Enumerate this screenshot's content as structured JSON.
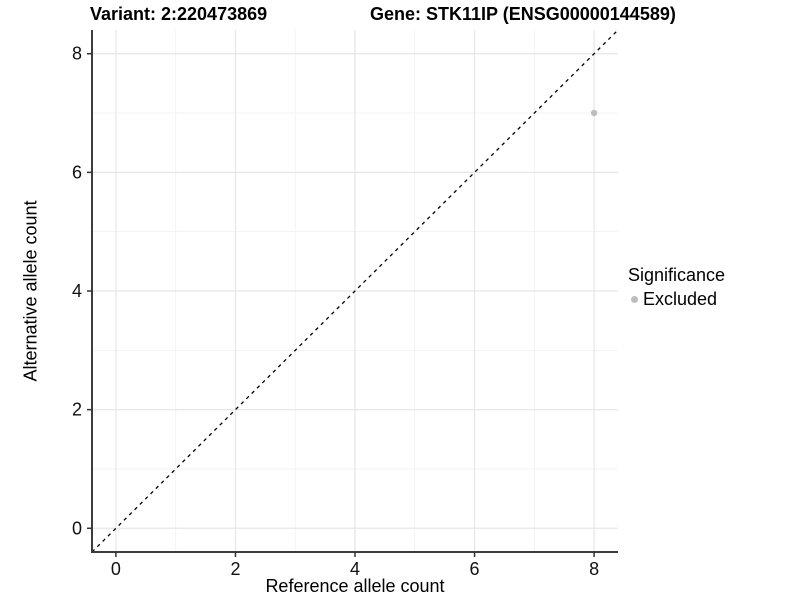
{
  "chart_data": {
    "type": "scatter",
    "title_left": "Variant: 2:220473869",
    "title_right": "Gene: STK11IP (ENSG00000144589)",
    "xlabel": "Reference allele count",
    "ylabel": "Alternative allele count",
    "xlim": [
      -0.4,
      8.4
    ],
    "ylim": [
      -0.4,
      8.4
    ],
    "x_ticks": [
      0,
      2,
      4,
      6,
      8
    ],
    "y_ticks": [
      0,
      2,
      4,
      6,
      8
    ],
    "x_minor_ticks": [
      1,
      3,
      5,
      7
    ],
    "y_minor_ticks": [
      1,
      3,
      5,
      7
    ],
    "grid": "major+minor",
    "reference_line": {
      "equation": "y = x",
      "style": "dashed",
      "color": "#000000"
    },
    "series": [
      {
        "name": "Excluded",
        "color": "#bdbdbd",
        "points": [
          [
            8,
            7
          ]
        ]
      }
    ],
    "legend": {
      "title": "Significance",
      "position": "right",
      "entries": [
        {
          "label": "Excluded",
          "color": "#bdbdbd"
        }
      ]
    },
    "style": {
      "grid_major_color": "#e6e6e6",
      "grid_minor_color": "#f3f3f3",
      "axis_line_color": "#3d3d3d",
      "tick_color": "#333333",
      "tick_label_color": "#111111",
      "point_radius": 3.2
    }
  }
}
